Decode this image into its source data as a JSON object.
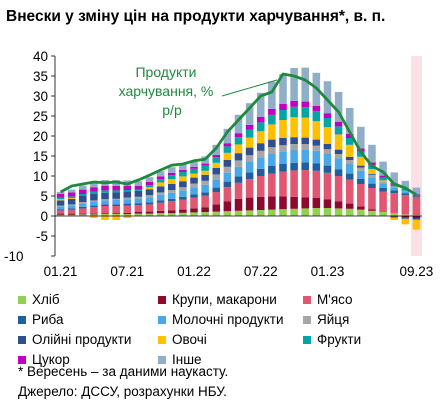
{
  "chart_data": {
    "type": "bar",
    "title": "Внески у зміну цін на продукти харчування*, в. п.",
    "annotation": "Продукти харчування, % р/р",
    "ylim": [
      -10,
      40
    ],
    "yticks": [
      "-10",
      "-5",
      "0",
      "5",
      "10",
      "15",
      "20",
      "25",
      "30",
      "35",
      "40"
    ],
    "x_tick_labels": [
      {
        "label": "01.21",
        "index": 0
      },
      {
        "label": "07.21",
        "index": 6
      },
      {
        "label": "01.22",
        "index": 12
      },
      {
        "label": "07.22",
        "index": 18
      },
      {
        "label": "01.23",
        "index": 24
      },
      {
        "label": "09.23",
        "index": 32
      }
    ],
    "highlight_from_index": 32,
    "categories": [
      "01.21",
      "02.21",
      "03.21",
      "04.21",
      "05.21",
      "06.21",
      "07.21",
      "08.21",
      "09.21",
      "10.21",
      "11.21",
      "12.21",
      "01.22",
      "02.22",
      "03.22",
      "04.22",
      "05.22",
      "06.22",
      "07.22",
      "08.22",
      "09.22",
      "10.22",
      "11.22",
      "12.22",
      "01.23",
      "02.23",
      "03.23",
      "04.23",
      "05.23",
      "06.23",
      "07.23",
      "08.23",
      "09.23"
    ],
    "series": [
      {
        "name": "Хліб",
        "color": "#92d050",
        "values": [
          0.3,
          0.3,
          0.4,
          0.4,
          0.5,
          0.5,
          0.5,
          0.6,
          0.6,
          0.7,
          0.7,
          0.8,
          0.9,
          1.0,
          1.1,
          1.2,
          1.3,
          1.4,
          1.5,
          1.6,
          1.7,
          1.8,
          1.9,
          2.0,
          2.0,
          1.9,
          1.8,
          1.6,
          1.3,
          1.0,
          0.7,
          0.4,
          0.2
        ]
      },
      {
        "name": "Крупи, макарони",
        "color": "#8b0a2e",
        "values": [
          0.3,
          0.3,
          0.2,
          0.2,
          0.2,
          0.2,
          0.3,
          0.4,
          0.5,
          0.6,
          0.7,
          0.8,
          1.0,
          1.2,
          1.8,
          2.5,
          3.0,
          3.2,
          3.3,
          3.3,
          3.2,
          3.0,
          2.8,
          2.5,
          2.2,
          1.8,
          1.3,
          0.8,
          0.4,
          0.0,
          -0.2,
          -0.4,
          -0.5
        ]
      },
      {
        "name": "М'ясо",
        "color": "#e15670",
        "values": [
          0.8,
          1.0,
          1.3,
          1.6,
          1.8,
          1.8,
          1.8,
          1.7,
          1.8,
          2.0,
          2.3,
          2.5,
          2.7,
          2.9,
          3.1,
          3.5,
          4.0,
          4.6,
          5.2,
          5.7,
          6.2,
          6.6,
          6.8,
          6.8,
          6.6,
          6.3,
          6.0,
          5.6,
          5.3,
          5.1,
          5.0,
          4.8,
          4.6
        ]
      },
      {
        "name": "Риба",
        "color": "#1f5f9e",
        "values": [
          0.3,
          0.3,
          0.4,
          0.4,
          0.4,
          0.4,
          0.5,
          0.5,
          0.5,
          0.6,
          0.6,
          0.7,
          0.8,
          0.8,
          1.1,
          1.4,
          1.6,
          1.7,
          1.8,
          1.9,
          1.9,
          1.9,
          1.9,
          1.9,
          1.8,
          1.7,
          1.5,
          1.3,
          1.1,
          0.9,
          0.7,
          0.5,
          0.4
        ]
      },
      {
        "name": "Молочні продукти",
        "color": "#4ba8e8",
        "values": [
          0.7,
          0.8,
          0.9,
          1.0,
          1.0,
          1.1,
          1.1,
          1.2,
          1.3,
          1.4,
          1.5,
          1.6,
          1.8,
          1.9,
          2.0,
          2.2,
          2.4,
          2.6,
          2.8,
          3.0,
          3.1,
          3.2,
          3.2,
          3.1,
          2.9,
          2.7,
          2.4,
          2.0,
          1.6,
          1.2,
          0.8,
          0.5,
          0.2
        ]
      },
      {
        "name": "Яйця",
        "color": "#a6a6a6",
        "values": [
          0.2,
          0.2,
          0.3,
          0.3,
          0.3,
          0.3,
          0.4,
          0.4,
          0.5,
          0.6,
          0.7,
          0.8,
          0.9,
          1.0,
          1.3,
          1.5,
          1.6,
          1.7,
          1.7,
          1.7,
          1.6,
          1.5,
          1.4,
          1.3,
          1.2,
          1.1,
          1.0,
          0.8,
          0.6,
          0.4,
          0.2,
          0.1,
          0.0
        ]
      },
      {
        "name": "Олійні продукти",
        "color": "#2f4f8f",
        "values": [
          1.3,
          1.4,
          1.5,
          1.6,
          1.6,
          1.6,
          1.5,
          1.5,
          1.5,
          1.5,
          1.5,
          1.5,
          1.5,
          1.5,
          1.6,
          1.7,
          1.8,
          1.9,
          1.9,
          1.9,
          1.8,
          1.7,
          1.6,
          1.5,
          1.3,
          1.1,
          0.8,
          0.5,
          0.2,
          0.0,
          -0.2,
          -0.3,
          -0.4
        ]
      },
      {
        "name": "Овочі",
        "color": "#ffc000",
        "values": [
          0.3,
          0.2,
          0.0,
          -0.5,
          -1.0,
          -1.0,
          -0.5,
          0.0,
          0.5,
          1.0,
          1.2,
          1.2,
          1.0,
          1.0,
          1.3,
          1.8,
          2.2,
          2.5,
          3.0,
          3.8,
          4.5,
          5.0,
          5.0,
          4.6,
          4.2,
          3.8,
          3.0,
          2.2,
          1.2,
          0.3,
          -0.6,
          -1.4,
          -2.5
        ]
      },
      {
        "name": "Фрукти",
        "color": "#00a6a6",
        "values": [
          0.4,
          0.4,
          0.5,
          0.6,
          0.6,
          0.5,
          0.4,
          0.3,
          0.5,
          0.8,
          1.0,
          1.1,
          1.2,
          1.3,
          1.4,
          1.6,
          1.8,
          2.0,
          2.2,
          2.4,
          2.5,
          2.6,
          2.6,
          2.5,
          2.3,
          2.0,
          1.7,
          1.3,
          1.0,
          0.7,
          0.4,
          0.2,
          0.0
        ]
      },
      {
        "name": "Цукор",
        "color": "#c000c0",
        "values": [
          0.9,
          1.0,
          1.1,
          1.1,
          1.1,
          1.1,
          1.0,
          0.9,
          0.8,
          0.7,
          0.6,
          0.5,
          0.5,
          0.5,
          0.6,
          0.8,
          1.0,
          1.2,
          1.4,
          1.5,
          1.5,
          1.5,
          1.4,
          1.3,
          1.2,
          1.1,
          1.0,
          0.8,
          0.7,
          0.5,
          0.4,
          0.2,
          0.1
        ]
      },
      {
        "name": "Інше",
        "color": "#91aec9",
        "values": [
          0.5,
          0.7,
          1.0,
          1.4,
          1.5,
          1.5,
          1.4,
          1.2,
          1.2,
          1.3,
          1.4,
          1.5,
          1.6,
          1.8,
          2.5,
          3.6,
          4.6,
          5.4,
          6.0,
          6.8,
          7.5,
          8.2,
          8.5,
          8.3,
          8.0,
          7.5,
          6.5,
          5.4,
          4.4,
          3.5,
          2.7,
          2.1,
          1.6
        ]
      }
    ],
    "line": {
      "name": "Продукти харчування, % р/р",
      "color": "#1f8a3e",
      "values": [
        6.0,
        7.5,
        8.0,
        8.5,
        8.3,
        8.5,
        8.0,
        9.0,
        10.2,
        11.5,
        12.7,
        13.0,
        13.8,
        14.2,
        17.0,
        21.0,
        24.0,
        27.0,
        30.0,
        31.0,
        35.5,
        35.0,
        34.0,
        32.0,
        29.0,
        26.0,
        21.0,
        16.0,
        12.5,
        11.0,
        8.0,
        7.0,
        5.3
      ]
    },
    "legend_placement": "bottom",
    "grid": false
  },
  "footnotes": {
    "note": "* Вересень – за даними наукасту.",
    "source": "Джерело: ДССУ, розрахунки НБУ."
  }
}
